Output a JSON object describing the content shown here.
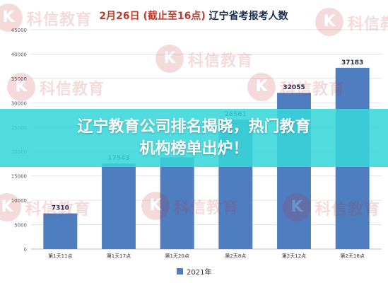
{
  "chart_data": {
    "type": "bar",
    "title": "2月26日 (截止至16点) 辽宁省考报考人数",
    "title_parts": {
      "date": "2月26日",
      "time": "(截止至16点)",
      "rest": "辽宁省考报考人数"
    },
    "categories": [
      "第1天11点",
      "第1天17点",
      "第1天20点",
      "第2天8点",
      "第2天12点",
      "第2天16点"
    ],
    "series": [
      {
        "name": "2021年",
        "values": [
          7310,
          17543,
          18800,
          26561,
          32055,
          37183
        ],
        "data_labels": [
          "7310",
          "17543",
          "",
          "26561",
          "32055",
          "37183"
        ]
      }
    ],
    "ylim": [
      0,
      45000
    ],
    "y_ticks": [
      0,
      5000,
      10000,
      15000,
      20000,
      25000,
      30000,
      35000,
      40000,
      45000
    ],
    "grid": true,
    "legend_position": "bottom",
    "colors": {
      "bar": "#4f7ec0",
      "title_red": "#c0392b",
      "title_dark": "#1f2d4e"
    }
  },
  "banner": {
    "line1": "辽宁教育公司排名揭晓，热门教育",
    "line2": "机构榜单出炉！",
    "color": "#38d6da"
  },
  "watermark": {
    "text": "科信教育",
    "logo_letter": "K"
  }
}
